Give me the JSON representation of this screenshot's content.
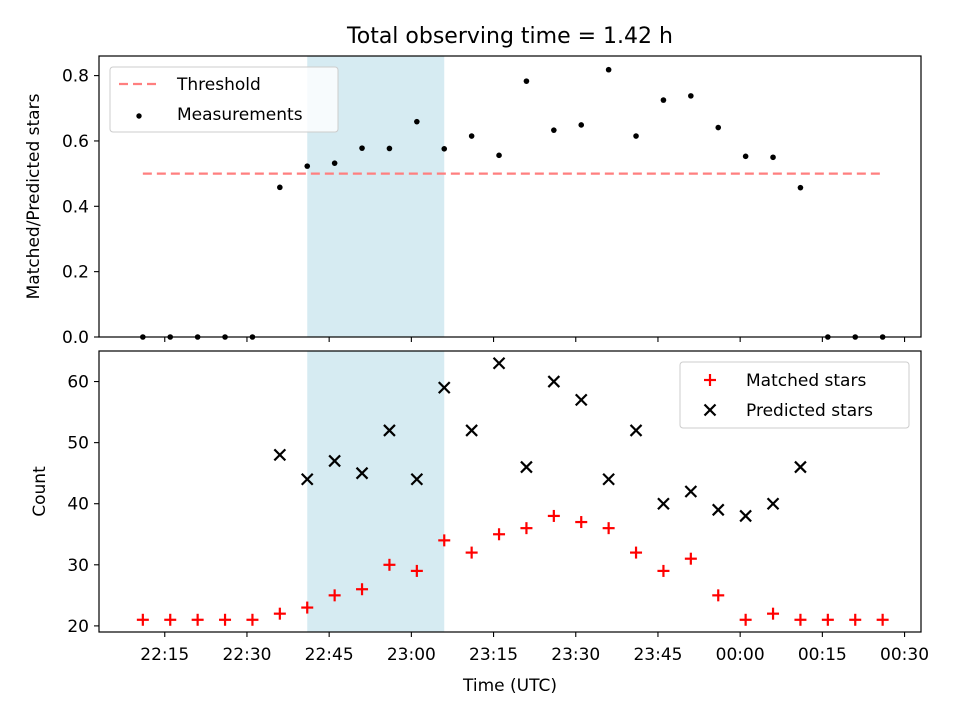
{
  "title": "Total observing time = 1.42 h",
  "colors": {
    "threshold": "#ff7f7f",
    "measurements": "#000000",
    "matched": "#ff0000",
    "predicted": "#000000",
    "observing_window": "#add8e6"
  },
  "chart_data": [
    {
      "type": "scatter",
      "ylabel": "Matched/Predicted stars",
      "xlim": [
        "22:03",
        "00:33"
      ],
      "ylim": [
        0,
        0.86
      ],
      "yticks": [
        0.0,
        0.2,
        0.4,
        0.6,
        0.8
      ],
      "ytick_labels": [
        "0.0",
        "0.2",
        "0.4",
        "0.6",
        "0.8"
      ],
      "shaded_span": [
        "22:41",
        "23:06"
      ],
      "legend": {
        "position": "upper left",
        "entries": [
          "Threshold",
          "Measurements"
        ]
      },
      "threshold": {
        "name": "Threshold",
        "value": 0.5,
        "x": [
          "22:11",
          "00:26"
        ]
      },
      "series": [
        {
          "name": "Measurements",
          "x": [
            "22:11",
            "22:16",
            "22:21",
            "22:26",
            "22:31",
            "22:36",
            "22:41",
            "22:46",
            "22:51",
            "22:56",
            "23:01",
            "23:06",
            "23:11",
            "23:16",
            "23:21",
            "23:26",
            "23:31",
            "23:36",
            "23:41",
            "23:46",
            "23:51",
            "23:56",
            "00:01",
            "00:06",
            "00:11",
            "00:16",
            "00:21",
            "00:26"
          ],
          "values": [
            0.0,
            0.0,
            0.0,
            0.0,
            0.0,
            0.458,
            0.523,
            0.532,
            0.578,
            0.577,
            0.659,
            0.576,
            0.615,
            0.556,
            0.783,
            0.633,
            0.649,
            0.818,
            0.615,
            0.725,
            0.738,
            0.641,
            0.553,
            0.55,
            0.457,
            0.0,
            0.0,
            0.0
          ]
        }
      ]
    },
    {
      "type": "scatter",
      "xlabel": "Time (UTC)",
      "ylabel": "Count",
      "xlim": [
        "22:03",
        "00:33"
      ],
      "ylim": [
        19,
        65
      ],
      "yticks": [
        20,
        30,
        40,
        50,
        60
      ],
      "ytick_labels": [
        "20",
        "30",
        "40",
        "50",
        "60"
      ],
      "xticks": [
        "22:15",
        "22:30",
        "22:45",
        "23:00",
        "23:15",
        "23:30",
        "23:45",
        "00:00",
        "00:15",
        "00:30"
      ],
      "xtick_labels": [
        "22:15",
        "22:30",
        "22:45",
        "23:00",
        "23:15",
        "23:30",
        "23:45",
        "00:00",
        "00:15",
        "00:30"
      ],
      "shaded_span": [
        "22:41",
        "23:06"
      ],
      "legend": {
        "position": "upper right",
        "entries": [
          "Matched stars",
          "Predicted stars"
        ]
      },
      "series": [
        {
          "name": "Matched stars",
          "x": [
            "22:11",
            "22:16",
            "22:21",
            "22:26",
            "22:31",
            "22:36",
            "22:41",
            "22:46",
            "22:51",
            "22:56",
            "23:01",
            "23:06",
            "23:11",
            "23:16",
            "23:21",
            "23:26",
            "23:31",
            "23:36",
            "23:41",
            "23:46",
            "23:51",
            "23:56",
            "00:01",
            "00:06",
            "00:11",
            "00:16",
            "00:21",
            "00:26"
          ],
          "values": [
            21,
            21,
            21,
            21,
            21,
            22,
            23,
            25,
            26,
            30,
            29,
            34,
            32,
            35,
            36,
            38,
            37,
            36,
            32,
            29,
            31,
            25,
            21,
            22,
            21,
            21,
            21,
            21
          ]
        },
        {
          "name": "Predicted stars",
          "x": [
            "22:36",
            "22:41",
            "22:46",
            "22:51",
            "22:56",
            "23:01",
            "23:06",
            "23:11",
            "23:16",
            "23:21",
            "23:26",
            "23:31",
            "23:36",
            "23:41",
            "23:46",
            "23:51",
            "23:56",
            "00:01",
            "00:06",
            "00:11"
          ],
          "values": [
            48,
            44,
            47,
            45,
            52,
            44,
            59,
            52,
            63,
            46,
            60,
            57,
            44,
            52,
            40,
            42,
            39,
            38,
            40,
            46
          ]
        }
      ]
    }
  ]
}
